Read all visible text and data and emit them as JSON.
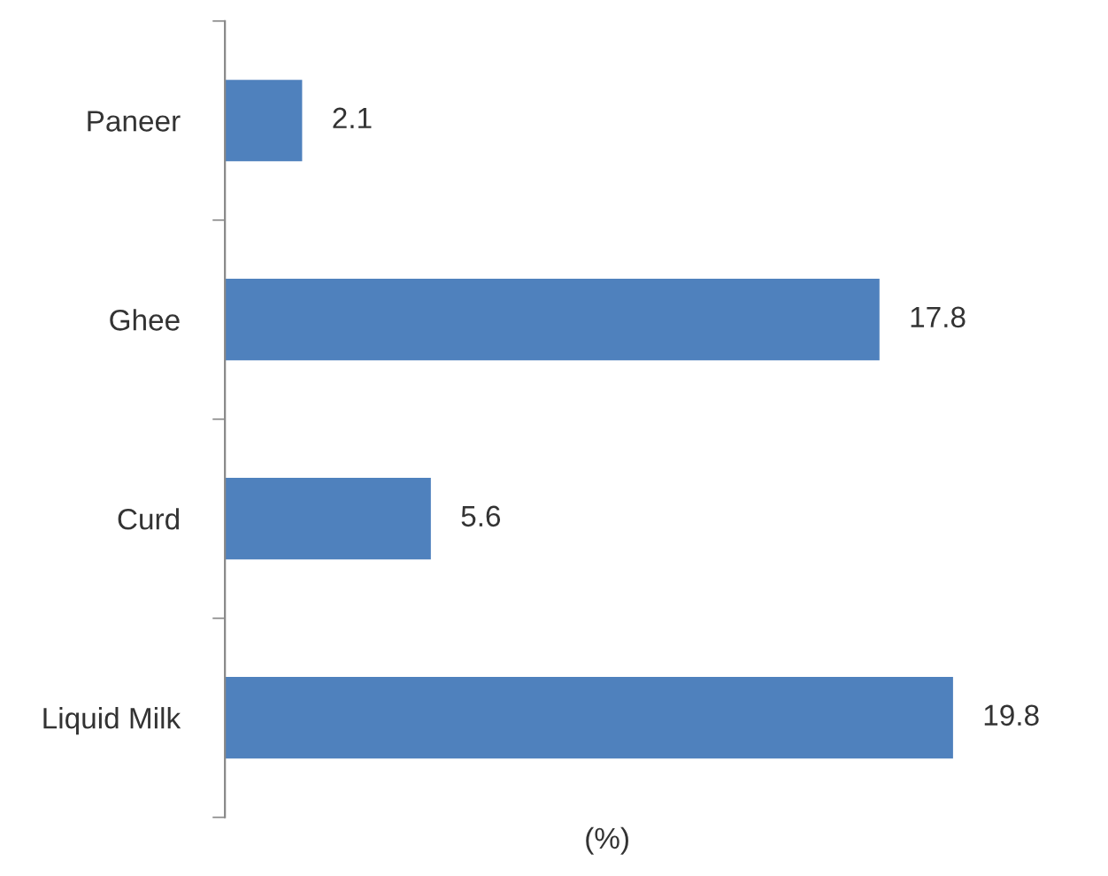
{
  "chart_data": {
    "type": "bar",
    "orientation": "horizontal",
    "xlabel": "(%)",
    "categories": [
      "Paneer",
      "Ghee",
      "Curd",
      "Liquid Milk"
    ],
    "values": [
      2.1,
      17.8,
      5.6,
      19.8
    ],
    "color": "#4f81bd",
    "data_labels": true,
    "grid": false,
    "legend": false,
    "tick_labels": "y"
  }
}
